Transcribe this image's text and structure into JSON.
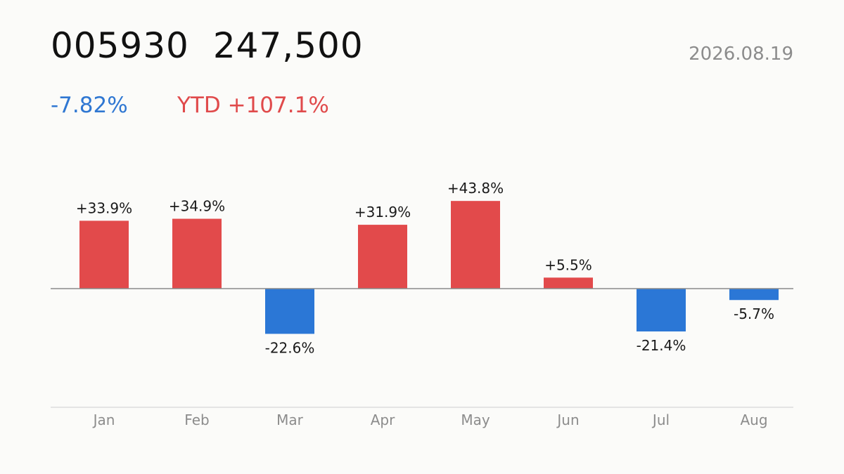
{
  "header": {
    "ticker": "005930",
    "price": "247,500",
    "date": "2026.08.19",
    "change": "-7.82%",
    "ytd": "YTD +107.1%"
  },
  "colors": {
    "positive": "#e24a4b",
    "negative": "#2b77d6",
    "baseline": "#8a8a8a",
    "axis": "#dddddd",
    "background": "#fbfbf9"
  },
  "chart_data": {
    "type": "bar",
    "categories": [
      "Jan",
      "Feb",
      "Mar",
      "Apr",
      "May",
      "Jun",
      "Jul",
      "Aug"
    ],
    "values": [
      33.9,
      34.9,
      -22.6,
      31.9,
      43.8,
      5.5,
      -21.4,
      -5.7
    ],
    "labels": [
      "+33.9%",
      "+34.9%",
      "-22.6%",
      "+31.9%",
      "+43.8%",
      "+5.5%",
      "-21.4%",
      "-5.7%"
    ],
    "unit": "%",
    "grid": false,
    "legend": "none"
  }
}
